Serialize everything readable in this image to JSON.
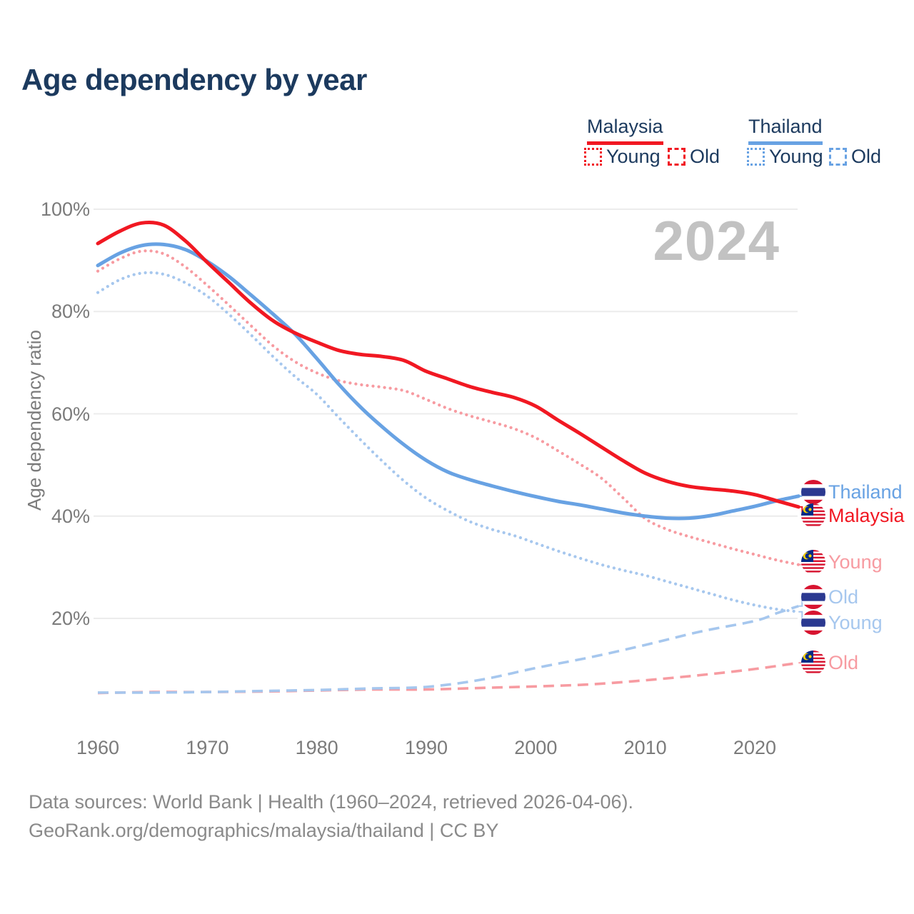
{
  "title": "Age dependency by year",
  "watermark": "2024",
  "legend": {
    "malaysia": {
      "label": "Malaysia",
      "young_label": "Young",
      "old_label": "Old",
      "color": "#f11822"
    },
    "thailand": {
      "label": "Thailand",
      "young_label": "Young",
      "old_label": "Old",
      "color": "#68a2e3"
    }
  },
  "y_axis": {
    "title": "Age dependency ratio"
  },
  "end_labels": [
    {
      "label": "Thailand",
      "flag": "thailand",
      "color": "#68a2e3",
      "series": "thailand_total"
    },
    {
      "label": "Malaysia",
      "flag": "malaysia",
      "color": "#f11822",
      "series": "malaysia_total"
    },
    {
      "label": "Young",
      "flag": "malaysia",
      "color": "#f79ba1",
      "series": "malaysia_young"
    },
    {
      "label": "Old",
      "flag": "thailand",
      "color": "#a6c7ee",
      "series": "thailand_old"
    },
    {
      "label": "Young",
      "flag": "thailand",
      "color": "#a6c7ee",
      "series": "thailand_young"
    },
    {
      "label": "Old",
      "flag": "malaysia",
      "color": "#f79ba1",
      "series": "malaysia_old"
    }
  ],
  "footer": {
    "line1": "Data sources: World Bank | Health (1960–2024, retrieved 2026-04-06).",
    "line2": "GeoRank.org/demographics/malaysia/thailand | CC BY"
  },
  "colors": {
    "malaysia_red": "#f11822",
    "malaysia_pink": "#f79ba1",
    "thailand_blue": "#68a2e3",
    "thailand_lightblue": "#a6c7ee",
    "title_navy": "#1c3a5e",
    "axis_gray": "#7b7b7b",
    "grid_gray": "#ececec",
    "watermark_gray": "#c2c2c2",
    "footer_gray": "#8a8a8a"
  },
  "chart_data": {
    "type": "line",
    "title": "Age dependency by year",
    "xlabel": "",
    "ylabel": "Age dependency ratio",
    "ylim": [
      0,
      100
    ],
    "xlim": [
      1960,
      2024
    ],
    "yticks": [
      100,
      80,
      60,
      40,
      20
    ],
    "ytick_labels": [
      "100%",
      "80%",
      "60%",
      "40%",
      "20%"
    ],
    "xticks": [
      1960,
      1970,
      1980,
      1990,
      2000,
      2010,
      2020
    ],
    "grid": "horizontal",
    "legend_position": "top-right",
    "series": [
      {
        "key": "malaysia_old",
        "name": "Malaysia Old",
        "color": "#f79ba1",
        "dash": "dashed",
        "points": [
          [
            1960,
            5.4
          ],
          [
            1965,
            5.6
          ],
          [
            1970,
            5.6
          ],
          [
            1975,
            5.7
          ],
          [
            1980,
            5.9
          ],
          [
            1985,
            6.1
          ],
          [
            1990,
            6.1
          ],
          [
            1995,
            6.4
          ],
          [
            2000,
            6.7
          ],
          [
            2005,
            7.1
          ],
          [
            2010,
            7.9
          ],
          [
            2015,
            8.9
          ],
          [
            2020,
            10.1
          ],
          [
            2024,
            11.3
          ]
        ]
      },
      {
        "key": "thailand_old",
        "name": "Thailand Old",
        "color": "#a6c7ee",
        "dash": "dashed",
        "points": [
          [
            1960,
            5.5
          ],
          [
            1965,
            5.5
          ],
          [
            1970,
            5.6
          ],
          [
            1975,
            5.8
          ],
          [
            1980,
            6.0
          ],
          [
            1985,
            6.3
          ],
          [
            1990,
            6.6
          ],
          [
            1995,
            8.0
          ],
          [
            2000,
            10.3
          ],
          [
            2005,
            12.4
          ],
          [
            2010,
            14.8
          ],
          [
            2015,
            17.4
          ],
          [
            2020,
            19.5
          ],
          [
            2022,
            21.0
          ],
          [
            2024,
            22.4
          ]
        ]
      },
      {
        "key": "malaysia_young",
        "name": "Malaysia Young",
        "color": "#f79ba1",
        "dash": "dotted",
        "points": [
          [
            1960,
            87.9
          ],
          [
            1962,
            90.3
          ],
          [
            1964,
            91.8
          ],
          [
            1966,
            91.3
          ],
          [
            1968,
            88.7
          ],
          [
            1970,
            85.1
          ],
          [
            1972,
            81.2
          ],
          [
            1974,
            77.2
          ],
          [
            1976,
            73.3
          ],
          [
            1978,
            70.2
          ],
          [
            1980,
            68.0
          ],
          [
            1982,
            66.5
          ],
          [
            1984,
            65.7
          ],
          [
            1986,
            65.2
          ],
          [
            1988,
            64.5
          ],
          [
            1990,
            62.8
          ],
          [
            1992,
            61.0
          ],
          [
            1994,
            59.6
          ],
          [
            1996,
            58.4
          ],
          [
            1998,
            57.1
          ],
          [
            2000,
            55.3
          ],
          [
            2002,
            52.8
          ],
          [
            2004,
            50.2
          ],
          [
            2006,
            47.4
          ],
          [
            2008,
            43.5
          ],
          [
            2010,
            39.5
          ],
          [
            2012,
            37.4
          ],
          [
            2014,
            36.0
          ],
          [
            2016,
            34.8
          ],
          [
            2018,
            33.6
          ],
          [
            2020,
            32.5
          ],
          [
            2022,
            31.4
          ],
          [
            2024,
            30.5
          ]
        ]
      },
      {
        "key": "thailand_young",
        "name": "Thailand Young",
        "color": "#a6c7ee",
        "dash": "dotted",
        "points": [
          [
            1960,
            83.7
          ],
          [
            1962,
            86.2
          ],
          [
            1964,
            87.5
          ],
          [
            1966,
            87.3
          ],
          [
            1968,
            85.6
          ],
          [
            1970,
            83.0
          ],
          [
            1972,
            79.4
          ],
          [
            1974,
            75.4
          ],
          [
            1976,
            71.2
          ],
          [
            1978,
            67.3
          ],
          [
            1980,
            63.8
          ],
          [
            1982,
            59.3
          ],
          [
            1984,
            54.9
          ],
          [
            1986,
            50.7
          ],
          [
            1988,
            46.8
          ],
          [
            1990,
            43.5
          ],
          [
            1992,
            41.0
          ],
          [
            1994,
            38.9
          ],
          [
            1996,
            37.4
          ],
          [
            1998,
            36.2
          ],
          [
            2000,
            34.7
          ],
          [
            2002,
            33.2
          ],
          [
            2004,
            31.8
          ],
          [
            2006,
            30.5
          ],
          [
            2008,
            29.4
          ],
          [
            2010,
            28.4
          ],
          [
            2012,
            27.2
          ],
          [
            2014,
            26.0
          ],
          [
            2016,
            24.8
          ],
          [
            2018,
            23.6
          ],
          [
            2020,
            22.6
          ],
          [
            2022,
            21.8
          ],
          [
            2024,
            21.3
          ]
        ]
      },
      {
        "key": "thailand_total",
        "name": "Thailand",
        "color": "#68a2e3",
        "dash": "solid",
        "points": [
          [
            1960,
            89.0
          ],
          [
            1962,
            91.4
          ],
          [
            1964,
            92.9
          ],
          [
            1966,
            93.1
          ],
          [
            1968,
            92.1
          ],
          [
            1970,
            89.8
          ],
          [
            1972,
            86.8
          ],
          [
            1974,
            83.2
          ],
          [
            1976,
            79.5
          ],
          [
            1978,
            75.6
          ],
          [
            1980,
            70.8
          ],
          [
            1982,
            65.8
          ],
          [
            1984,
            61.3
          ],
          [
            1986,
            57.4
          ],
          [
            1988,
            53.9
          ],
          [
            1990,
            50.9
          ],
          [
            1992,
            48.6
          ],
          [
            1994,
            47.1
          ],
          [
            1996,
            45.9
          ],
          [
            1998,
            44.8
          ],
          [
            2000,
            43.8
          ],
          [
            2002,
            42.9
          ],
          [
            2004,
            42.2
          ],
          [
            2006,
            41.4
          ],
          [
            2008,
            40.6
          ],
          [
            2010,
            40.0
          ],
          [
            2012,
            39.6
          ],
          [
            2014,
            39.6
          ],
          [
            2016,
            40.1
          ],
          [
            2018,
            41.0
          ],
          [
            2020,
            41.9
          ],
          [
            2022,
            43.0
          ],
          [
            2024,
            43.9
          ]
        ]
      },
      {
        "key": "malaysia_total",
        "name": "Malaysia",
        "color": "#f11822",
        "dash": "solid",
        "points": [
          [
            1960,
            93.3
          ],
          [
            1962,
            95.7
          ],
          [
            1964,
            97.3
          ],
          [
            1966,
            96.9
          ],
          [
            1968,
            93.8
          ],
          [
            1970,
            89.6
          ],
          [
            1972,
            85.6
          ],
          [
            1974,
            81.6
          ],
          [
            1976,
            78.2
          ],
          [
            1978,
            75.8
          ],
          [
            1980,
            74.0
          ],
          [
            1982,
            72.4
          ],
          [
            1984,
            71.6
          ],
          [
            1986,
            71.2
          ],
          [
            1988,
            70.4
          ],
          [
            1990,
            68.3
          ],
          [
            1992,
            66.8
          ],
          [
            1994,
            65.3
          ],
          [
            1996,
            64.2
          ],
          [
            1998,
            63.2
          ],
          [
            2000,
            61.5
          ],
          [
            2002,
            58.8
          ],
          [
            2004,
            56.2
          ],
          [
            2006,
            53.5
          ],
          [
            2008,
            50.8
          ],
          [
            2010,
            48.4
          ],
          [
            2012,
            46.8
          ],
          [
            2014,
            45.8
          ],
          [
            2016,
            45.3
          ],
          [
            2018,
            44.9
          ],
          [
            2020,
            44.2
          ],
          [
            2022,
            43.0
          ],
          [
            2024,
            41.8
          ]
        ]
      }
    ]
  }
}
